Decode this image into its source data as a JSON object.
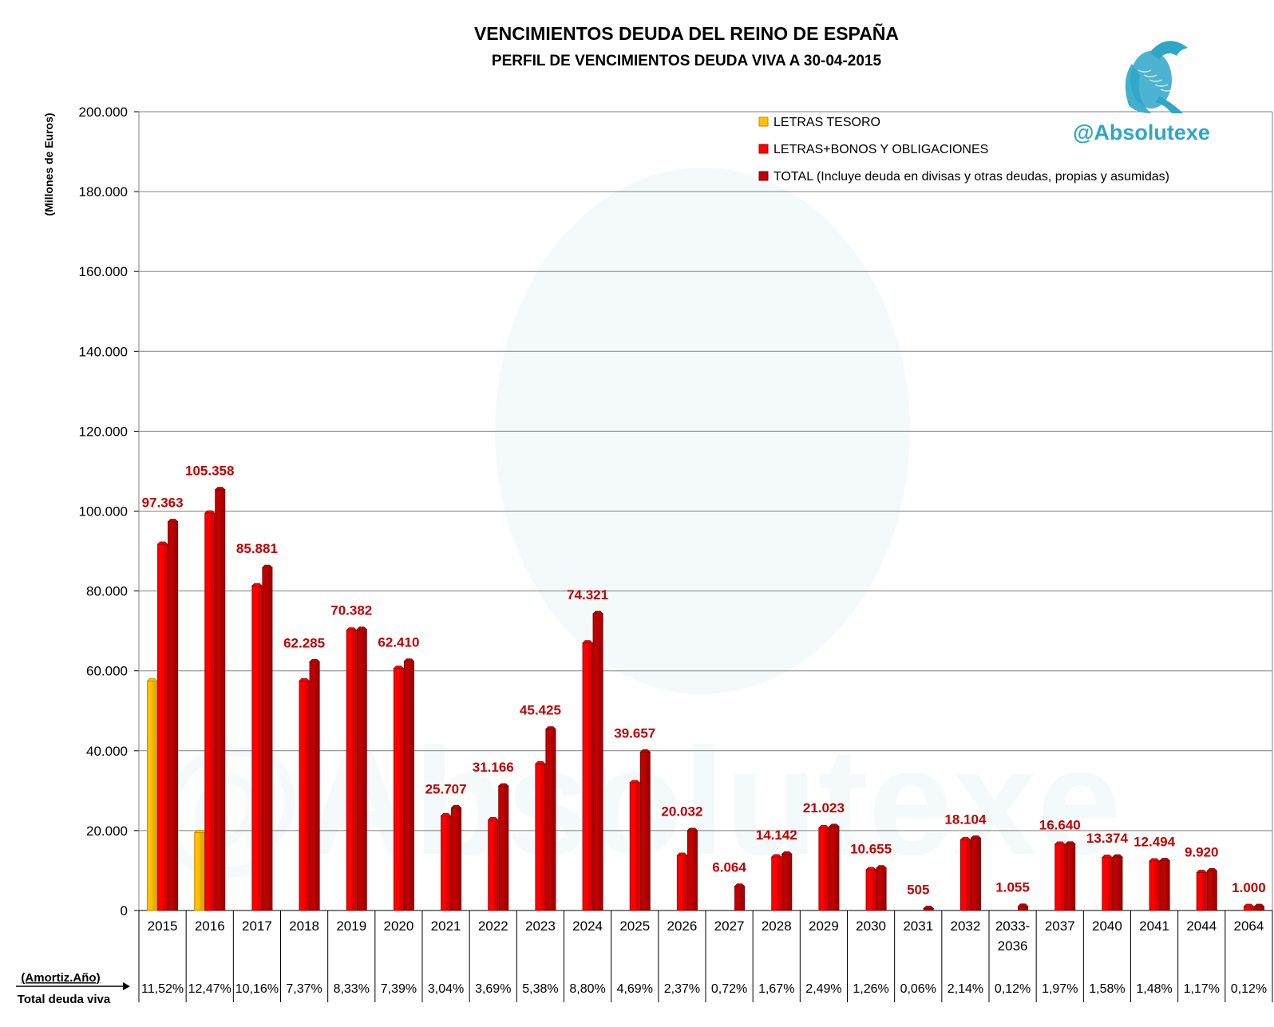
{
  "brand": {
    "handle": "@Absolutexe",
    "logo_icon": "griffin-logo-icon",
    "color": "#2fa6c8"
  },
  "colors": {
    "letras": "#ffc000",
    "bonos": "#ff0000",
    "total": "#c00000",
    "label": "#c00000",
    "grid": "#808080"
  },
  "table": {
    "row_label_1": "(Amortiz.Año)",
    "row_label_2": "Total deuda viva"
  },
  "chart_data": {
    "type": "bar",
    "title": "VENCIMIENTOS DEUDA DEL REINO DE ESPAÑA",
    "subtitle": "PERFIL DE VENCIMIENTOS DEUDA VIVA A 30-04-2015",
    "ylabel": "(Millones de Euros)",
    "ylim": [
      0,
      200000
    ],
    "yticks": [
      0,
      20000,
      40000,
      60000,
      80000,
      100000,
      120000,
      140000,
      160000,
      180000,
      200000
    ],
    "ytick_labels": [
      "0",
      "20.000",
      "40.000",
      "60.000",
      "80.000",
      "100.000",
      "120.000",
      "140.000",
      "160.000",
      "180.000",
      "200.000"
    ],
    "grid": true,
    "legend_position": "top-right",
    "categories": [
      "2015",
      "2016",
      "2017",
      "2018",
      "2019",
      "2020",
      "2021",
      "2022",
      "2023",
      "2024",
      "2025",
      "2026",
      "2027",
      "2028",
      "2029",
      "2030",
      "2031",
      "2032",
      "2033-\n2036",
      "2037",
      "2040",
      "2041",
      "2044",
      "2064"
    ],
    "series": [
      {
        "name": "LETRAS TESORO",
        "values": [
          57500,
          19500,
          0,
          0,
          0,
          0,
          0,
          0,
          0,
          0,
          0,
          0,
          0,
          0,
          0,
          0,
          0,
          0,
          0,
          0,
          0,
          0,
          0,
          0
        ]
      },
      {
        "name": "LETRAS+BONOS Y OBLIGACIONES",
        "values": [
          91700,
          99500,
          81300,
          57500,
          70200,
          60600,
          23700,
          22700,
          36700,
          67000,
          32000,
          13800,
          0,
          13400,
          20700,
          10200,
          0,
          17700,
          0,
          16600,
          13300,
          12400,
          9500,
          1000
        ]
      },
      {
        "name": "TOTAL (Incluye deuda en divisas y otras deudas, propias y asumidas)",
        "values": [
          97363,
          105358,
          85881,
          62285,
          70382,
          62410,
          25707,
          31166,
          45425,
          74321,
          39657,
          20032,
          6064,
          14142,
          21023,
          10655,
          505,
          18104,
          1055,
          16640,
          13374,
          12494,
          9920,
          1000
        ]
      }
    ],
    "data_labels": [
      "97.363",
      "105.358",
      "85.881",
      "62.285",
      "70.382",
      "62.410",
      "25.707",
      "31.166",
      "45.425",
      "74.321",
      "39.657",
      "20.032",
      "6.064",
      "14.142",
      "21.023",
      "10.655",
      "505",
      "18.104",
      "1.055",
      "16.640",
      "13.374",
      "12.494",
      "9.920",
      "1.000"
    ],
    "pct_total_deuda_viva": [
      "11,52%",
      "12,47%",
      "10,16%",
      "7,37%",
      "8,33%",
      "7,39%",
      "3,04%",
      "3,69%",
      "5,38%",
      "8,80%",
      "4,69%",
      "2,37%",
      "0,72%",
      "1,67%",
      "2,49%",
      "1,26%",
      "0,06%",
      "2,14%",
      "0,12%",
      "1,97%",
      "1,58%",
      "1,48%",
      "1,17%",
      "0,12%"
    ]
  }
}
